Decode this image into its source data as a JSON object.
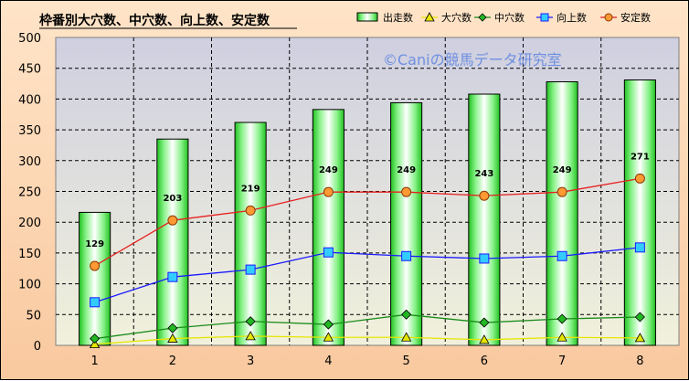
{
  "chart_data": {
    "type": "bar",
    "title": "枠番別大穴数、中穴数、向上数、安定数",
    "watermark": "©Caniの競馬データ研究室",
    "categories": [
      "1",
      "2",
      "3",
      "4",
      "5",
      "6",
      "7",
      "8"
    ],
    "ylim": [
      0,
      500
    ],
    "yticks": [
      "0",
      "50",
      "100",
      "150",
      "200",
      "250",
      "300",
      "350",
      "400",
      "450",
      "500"
    ],
    "grid": true,
    "legend_position": "top-right",
    "series": [
      {
        "name": "出走数",
        "type": "bar",
        "values": [
          216,
          335,
          362,
          383,
          394,
          408,
          428,
          431
        ],
        "color": "#33cc33"
      },
      {
        "name": "大穴数",
        "type": "line",
        "marker": "triangle",
        "values": [
          2,
          11,
          15,
          13,
          13,
          9,
          13,
          12
        ],
        "color": "#e6e600"
      },
      {
        "name": "中穴数",
        "type": "line",
        "marker": "diamond",
        "values": [
          11,
          28,
          39,
          34,
          50,
          37,
          43,
          46
        ],
        "color": "#1a8c1a"
      },
      {
        "name": "向上数",
        "type": "line",
        "marker": "square",
        "values": [
          70,
          111,
          123,
          151,
          145,
          141,
          145,
          159
        ],
        "color": "#1a1aff"
      },
      {
        "name": "安定数",
        "type": "line",
        "marker": "circle",
        "values": [
          129,
          203,
          219,
          249,
          249,
          243,
          249,
          271
        ],
        "color": "#e62020",
        "labels": [
          "129",
          "203",
          "219",
          "249",
          "249",
          "243",
          "249",
          "271"
        ]
      }
    ]
  }
}
